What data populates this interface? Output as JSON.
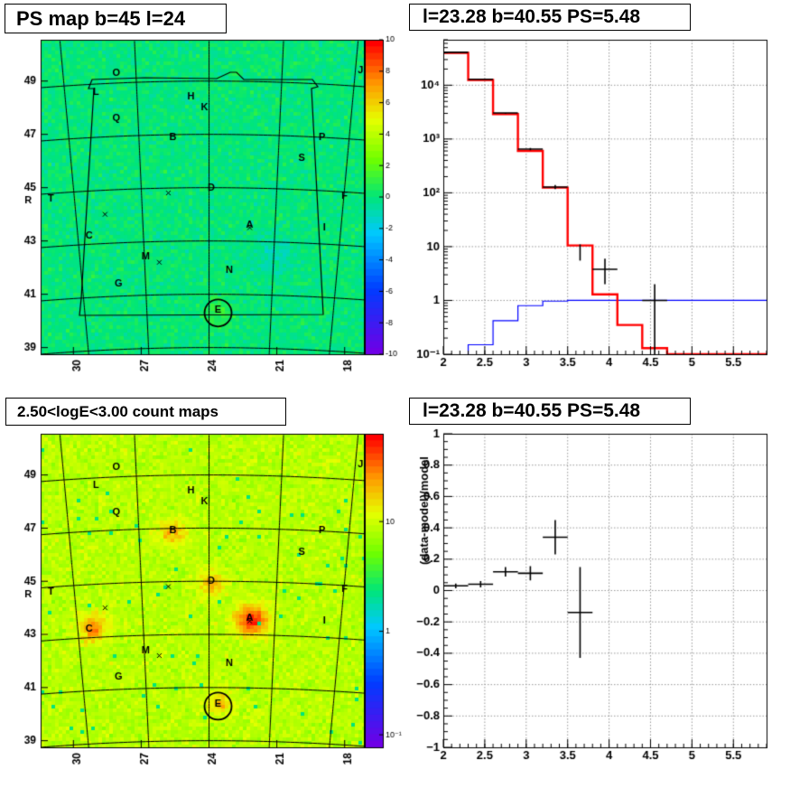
{
  "chart_data": [
    {
      "type": "heatmap",
      "title": "PS map b=45 l=24",
      "x_ticks": [
        30,
        27,
        24,
        21,
        18
      ],
      "y_ticks": [
        39,
        41,
        43,
        45,
        47,
        49
      ],
      "colorbar": {
        "scale": "linear",
        "min": -10,
        "max": 10,
        "ticks": [
          10,
          8,
          6,
          4,
          2,
          0,
          -2,
          -4,
          -6,
          -8,
          -10
        ]
      },
      "sources": [
        {
          "label": "O",
          "l": 28.1,
          "b": 49.3
        },
        {
          "label": "J",
          "l": 17.3,
          "b": 49.4
        },
        {
          "label": "L",
          "l": 29.0,
          "b": 48.6
        },
        {
          "label": "H",
          "l": 24.8,
          "b": 48.4
        },
        {
          "label": "K",
          "l": 24.2,
          "b": 48.0
        },
        {
          "label": "Q",
          "l": 28.1,
          "b": 47.6
        },
        {
          "label": "B",
          "l": 25.6,
          "b": 46.9
        },
        {
          "label": "P",
          "l": 19.0,
          "b": 46.9
        },
        {
          "label": "S",
          "l": 19.9,
          "b": 46.1
        },
        {
          "label": "D",
          "l": 23.9,
          "b": 45.0
        },
        {
          "label": "F",
          "l": 18.0,
          "b": 44.7
        },
        {
          "label": "R",
          "l": 32.0,
          "b": 44.5
        },
        {
          "label": "T",
          "l": 31.0,
          "b": 44.6
        },
        {
          "label": "A",
          "l": 22.2,
          "b": 43.6
        },
        {
          "label": "I",
          "l": 18.9,
          "b": 43.5
        },
        {
          "label": "C",
          "l": 29.3,
          "b": 43.2
        },
        {
          "label": "M",
          "l": 26.8,
          "b": 42.4
        },
        {
          "label": "N",
          "l": 23.1,
          "b": 41.9
        },
        {
          "label": "G",
          "l": 28.0,
          "b": 41.4
        },
        {
          "label": "E",
          "l": 23.6,
          "b": 40.4
        }
      ],
      "crosses": [
        {
          "l": 25.8,
          "b": 44.8
        },
        {
          "l": 28.6,
          "b": 44.0
        },
        {
          "l": 22.2,
          "b": 43.5
        },
        {
          "l": 26.2,
          "b": 42.2
        }
      ],
      "circle": {
        "l": 23.6,
        "b": 40.3
      }
    },
    {
      "type": "line",
      "title": "l=23.28 b=40.55 PS=5.48",
      "xlim": [
        2,
        5.9
      ],
      "ylim": [
        0.1,
        70000
      ],
      "yscale": "log",
      "x_ticks": [
        "2",
        "2.5",
        "3",
        "3.5",
        "4",
        "4.5",
        "5",
        "5.5"
      ],
      "y_ticks": [
        "10⁻¹",
        "1",
        "10",
        "10²",
        "10³",
        "10⁴"
      ],
      "grid": true,
      "bin_edges": [
        2.0,
        2.3,
        2.6,
        2.9,
        3.2,
        3.5,
        3.8,
        4.1,
        4.4,
        4.7,
        5.0,
        5.3,
        5.6,
        5.9
      ],
      "series": [
        {
          "type": "step",
          "color": "#ff0000",
          "values": [
            40000,
            12500,
            2900,
            600,
            125,
            10.5,
            1.3,
            0.35,
            0.13,
            0.1,
            0.1,
            0.1,
            0.1
          ]
        },
        {
          "type": "step",
          "color": "#0000ff",
          "values": [
            0.09,
            0.15,
            0.42,
            0.8,
            0.97,
            1.0,
            1.0,
            1.0,
            1.0,
            1.0,
            1.0,
            1.0,
            1.0
          ]
        },
        {
          "type": "errorbar",
          "color": "#000000",
          "points": [
            {
              "x": 2.15,
              "y": 41000,
              "xe": 0.15,
              "lo": 40600,
              "hi": 41400
            },
            {
              "x": 2.45,
              "y": 12900,
              "xe": 0.15,
              "lo": 12700,
              "hi": 13100
            },
            {
              "x": 2.75,
              "y": 3050,
              "xe": 0.15,
              "lo": 2950,
              "hi": 3150
            },
            {
              "x": 3.05,
              "y": 650,
              "xe": 0.15,
              "lo": 620,
              "hi": 680
            },
            {
              "x": 3.35,
              "y": 128,
              "xe": 0.15,
              "lo": 117,
              "hi": 139
            },
            {
              "x": 3.65,
              "y": 8,
              "xe": 0.0,
              "lo": 5.5,
              "hi": 11
            },
            {
              "x": 3.95,
              "y": 3.8,
              "xe": 0.15,
              "lo": 2.0,
              "hi": 6.0
            },
            {
              "x": 4.55,
              "y": 1.0,
              "xe": 0.15,
              "lo": 0.1,
              "hi": 2.0
            }
          ]
        }
      ]
    },
    {
      "type": "heatmap",
      "title": "2.50<logE<3.00 count maps",
      "x_ticks": [
        30,
        27,
        24,
        21,
        18
      ],
      "y_ticks": [
        39,
        41,
        43,
        45,
        47,
        49
      ],
      "colorbar": {
        "scale": "log",
        "ticks": [
          "10",
          "1",
          "10⁻¹"
        ]
      },
      "hotspots": [
        {
          "label": "A",
          "l": 22.2,
          "b": 43.6,
          "strength": 1.0
        },
        {
          "label": "C",
          "l": 29.2,
          "b": 43.3,
          "strength": 0.65
        },
        {
          "label": "B",
          "l": 25.7,
          "b": 46.9,
          "strength": 0.5
        },
        {
          "label": "D",
          "l": 24.0,
          "b": 45.0,
          "strength": 0.45
        },
        {
          "label": "E",
          "l": 23.6,
          "b": 40.5,
          "strength": 0.4
        }
      ]
    },
    {
      "type": "scatter",
      "title": "l=23.28 b=40.55 PS=5.48",
      "ylabel": "(data-model)/model",
      "xlim": [
        2,
        5.9
      ],
      "ylim": [
        -1,
        1
      ],
      "x_ticks": [
        "2",
        "2.5",
        "3",
        "3.5",
        "4",
        "4.5",
        "5",
        "5.5"
      ],
      "y_ticks": [
        "1",
        "0.8",
        "0.6",
        "0.4",
        "0.2",
        "0",
        "−0.2",
        "−0.4",
        "−0.6",
        "−0.8",
        "−1"
      ],
      "grid": true,
      "points": [
        {
          "x": 2.15,
          "y": 0.03,
          "xe": 0.15,
          "ye": 0.015
        },
        {
          "x": 2.45,
          "y": 0.04,
          "xe": 0.15,
          "ye": 0.02
        },
        {
          "x": 2.75,
          "y": 0.12,
          "xe": 0.15,
          "ye": 0.03
        },
        {
          "x": 3.05,
          "y": 0.11,
          "xe": 0.15,
          "ye": 0.045
        },
        {
          "x": 3.35,
          "y": 0.34,
          "xe": 0.15,
          "ye": 0.11
        },
        {
          "x": 3.65,
          "y": -0.14,
          "xe": 0.15,
          "ye": 0.29
        }
      ]
    }
  ]
}
